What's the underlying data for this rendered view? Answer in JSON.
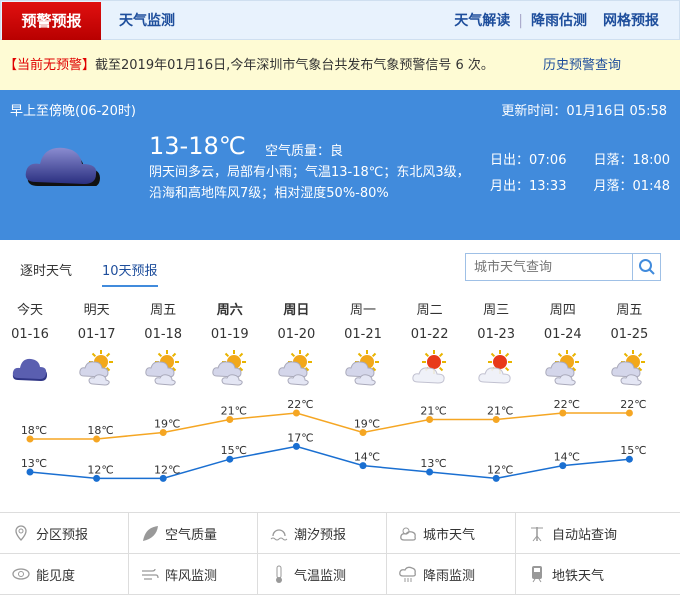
{
  "nav": {
    "active": "预警预报",
    "second": "天气监测",
    "right": [
      "天气解读",
      "降雨估测",
      "网格预报"
    ]
  },
  "alert": {
    "status": "【当前无预警】",
    "text": "截至2019年01月16日,今年深圳市气象台共发布气象预警信号 6 次。",
    "history_link": "历史预警查询"
  },
  "today": {
    "period": "早上至傍晚(06-20时)",
    "update": "更新时间：01月16日 05:58",
    "temp": "13-18℃",
    "air_quality": "空气质量：良",
    "description": "阴天间多云，局部有小雨；气温13-18℃；东北风3级，沿海和高地阵风7级；相对湿度50%-80%",
    "sunrise": "日出：07:06",
    "sunset": "日落：18:00",
    "moonrise": "月出：13:33",
    "moonset": "月落：01:48",
    "icon": "cloudy-icon"
  },
  "tabs": [
    "逐时天气",
    "10天预报"
  ],
  "active_tab": 1,
  "search": {
    "placeholder": "城市天气查询"
  },
  "forecast": [
    {
      "week": "今天",
      "date": "01-16",
      "icon": "cloudy",
      "high": "18℃",
      "low": "13℃",
      "hi": 18,
      "lo": 13,
      "bold": false
    },
    {
      "week": "明天",
      "date": "01-17",
      "icon": "partly-cloudy",
      "high": "18℃",
      "low": "12℃",
      "hi": 18,
      "lo": 12,
      "bold": false
    },
    {
      "week": "周五",
      "date": "01-18",
      "icon": "partly-cloudy",
      "high": "19℃",
      "low": "12℃",
      "hi": 19,
      "lo": 12,
      "bold": false
    },
    {
      "week": "周六",
      "date": "01-19",
      "icon": "partly-cloudy",
      "high": "21℃",
      "low": "15℃",
      "hi": 21,
      "lo": 15,
      "bold": true
    },
    {
      "week": "周日",
      "date": "01-20",
      "icon": "partly-cloudy",
      "high": "22℃",
      "low": "17℃",
      "hi": 22,
      "lo": 17,
      "bold": true
    },
    {
      "week": "周一",
      "date": "01-21",
      "icon": "partly-cloudy",
      "high": "19℃",
      "low": "14℃",
      "hi": 19,
      "lo": 14,
      "bold": false
    },
    {
      "week": "周二",
      "date": "01-22",
      "icon": "sunny-cloudy",
      "high": "21℃",
      "low": "13℃",
      "hi": 21,
      "lo": 13,
      "bold": false
    },
    {
      "week": "周三",
      "date": "01-23",
      "icon": "sunny-cloudy",
      "high": "21℃",
      "low": "12℃",
      "hi": 21,
      "lo": 12,
      "bold": false
    },
    {
      "week": "周四",
      "date": "01-24",
      "icon": "partly-cloudy",
      "high": "22℃",
      "low": "14℃",
      "hi": 22,
      "lo": 14,
      "bold": false
    },
    {
      "week": "周五",
      "date": "01-25",
      "icon": "partly-cloudy",
      "high": "22℃",
      "low": "15℃",
      "hi": 22,
      "lo": 15,
      "bold": false
    }
  ],
  "colors": {
    "high": "#f5a623",
    "low": "#1a6fd1",
    "panel": "#418bdc",
    "alert_red": "#e00000"
  },
  "services": [
    {
      "label": "分区预报",
      "icon": "map-pin-icon"
    },
    {
      "label": "空气质量",
      "icon": "leaf-icon"
    },
    {
      "label": "潮汐预报",
      "icon": "tide-icon"
    },
    {
      "label": "城市天气",
      "icon": "sun-cloud-icon"
    },
    {
      "label": "自动站查询",
      "icon": "weather-station-icon"
    },
    {
      "label": "能见度",
      "icon": "eye-icon"
    },
    {
      "label": "阵风监测",
      "icon": "wind-icon"
    },
    {
      "label": "气温监测",
      "icon": "thermometer-icon"
    },
    {
      "label": "降雨监测",
      "icon": "rain-cloud-icon"
    },
    {
      "label": "地铁天气",
      "icon": "subway-icon"
    }
  ]
}
